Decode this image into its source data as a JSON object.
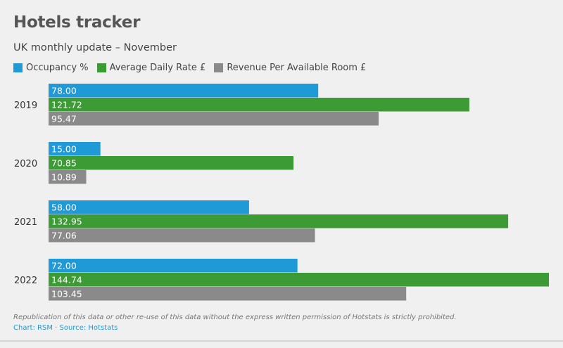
{
  "chart_data": {
    "type": "bar",
    "orientation": "horizontal",
    "title": "Hotels tracker",
    "subtitle": "UK monthly update – November",
    "categories": [
      "2019",
      "2020",
      "2021",
      "2022"
    ],
    "series": [
      {
        "name": "Occupancy %",
        "color": "#1f9ad7",
        "values": [
          78.0,
          15.0,
          58.0,
          72.0
        ],
        "labels": [
          "78.00",
          "15.00",
          "58.00",
          "72.00"
        ]
      },
      {
        "name": "Average Daily Rate £",
        "color": "#3c9b35",
        "values": [
          121.72,
          70.85,
          132.95,
          144.74
        ],
        "labels": [
          "121.72",
          "70.85",
          "132.95",
          "144.74"
        ]
      },
      {
        "name": "Revenue Per Available Room £",
        "color": "#8a8a8a",
        "values": [
          95.47,
          10.89,
          77.06,
          103.45
        ],
        "labels": [
          "95.47",
          "10.89",
          "77.06",
          "103.45"
        ]
      }
    ],
    "xlim": [
      0,
      144.74
    ],
    "grid": false,
    "legend": "top-left"
  },
  "footer": {
    "note": "Republication of this data or other re-use of this data without the express written permission of Hotstats is strictly prohibited.",
    "source": "Chart: RSM · Source: Hotstats"
  }
}
